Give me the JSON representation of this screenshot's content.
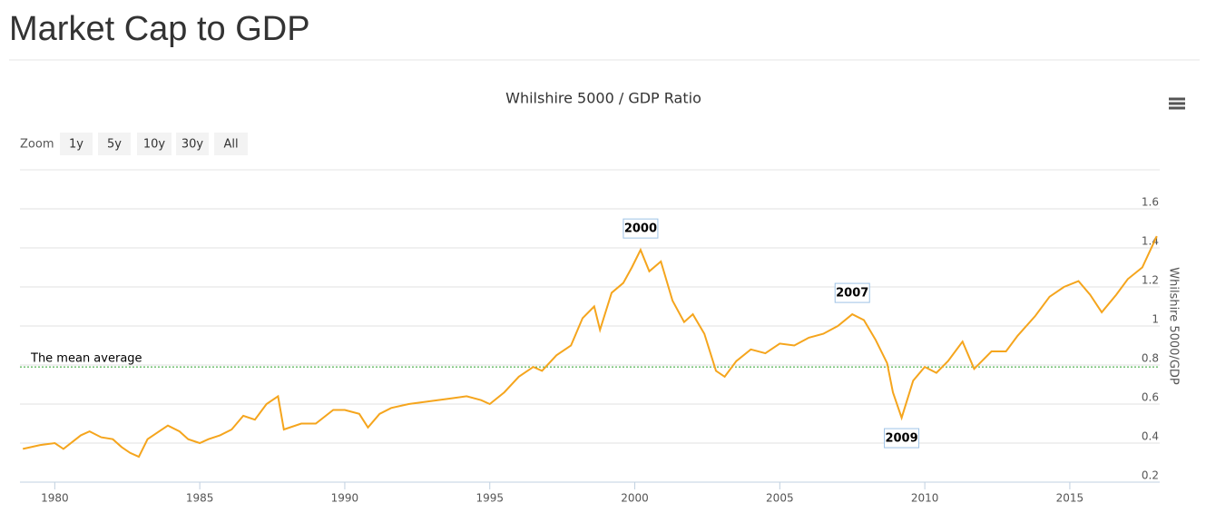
{
  "page_title": "Market Cap to GDP",
  "zoom": {
    "label": "Zoom",
    "buttons": [
      "1y",
      "5y",
      "10y",
      "30y",
      "All"
    ]
  },
  "chart_data": {
    "type": "line",
    "title": "Whilshire 5000 / GDP Ratio",
    "y_axis_label": "Whilshire 5000/GDP",
    "x": [
      1978.9,
      1979.5,
      1980.0,
      1980.3,
      1980.9,
      1981.2,
      1981.6,
      1982.0,
      1982.3,
      1982.6,
      1982.9,
      1983.2,
      1983.6,
      1983.9,
      1984.3,
      1984.6,
      1985.0,
      1985.3,
      1985.7,
      1986.1,
      1986.5,
      1986.9,
      1987.3,
      1987.7,
      1987.9,
      1988.5,
      1989.0,
      1989.6,
      1990.0,
      1990.5,
      1990.8,
      1991.2,
      1991.6,
      1992.2,
      1992.7,
      1993.2,
      1993.7,
      1994.2,
      1994.7,
      1995.0,
      1995.5,
      1996.0,
      1996.5,
      1996.8,
      1997.3,
      1997.8,
      1998.2,
      1998.6,
      1998.8,
      1999.2,
      1999.6,
      1999.9,
      2000.2,
      2000.5,
      2000.9,
      2001.3,
      2001.7,
      2002.0,
      2002.4,
      2002.8,
      2003.1,
      2003.5,
      2004.0,
      2004.5,
      2005.0,
      2005.5,
      2006.0,
      2006.5,
      2007.0,
      2007.5,
      2007.9,
      2008.3,
      2008.7,
      2008.9,
      2009.2,
      2009.6,
      2010.0,
      2010.4,
      2010.8,
      2011.3,
      2011.7,
      2012.3,
      2012.8,
      2013.2,
      2013.8,
      2014.3,
      2014.8,
      2015.3,
      2015.7,
      2016.1,
      2016.6,
      2017.0,
      2017.5,
      2018.0
    ],
    "series": [
      {
        "name": "Whilshire 5000 / GDP",
        "color": "#f5a51d",
        "values": [
          0.37,
          0.39,
          0.4,
          0.37,
          0.44,
          0.46,
          0.43,
          0.42,
          0.38,
          0.35,
          0.33,
          0.42,
          0.46,
          0.49,
          0.46,
          0.42,
          0.4,
          0.42,
          0.44,
          0.47,
          0.54,
          0.52,
          0.6,
          0.64,
          0.47,
          0.5,
          0.5,
          0.57,
          0.57,
          0.55,
          0.48,
          0.55,
          0.58,
          0.6,
          0.61,
          0.62,
          0.63,
          0.64,
          0.62,
          0.6,
          0.66,
          0.74,
          0.79,
          0.77,
          0.85,
          0.9,
          1.04,
          1.1,
          0.98,
          1.17,
          1.22,
          1.3,
          1.39,
          1.28,
          1.33,
          1.13,
          1.02,
          1.06,
          0.96,
          0.77,
          0.74,
          0.82,
          0.88,
          0.86,
          0.91,
          0.9,
          0.94,
          0.96,
          1.0,
          1.06,
          1.03,
          0.93,
          0.81,
          0.66,
          0.53,
          0.72,
          0.79,
          0.76,
          0.82,
          0.92,
          0.78,
          0.87,
          0.87,
          0.95,
          1.05,
          1.15,
          1.2,
          1.23,
          1.16,
          1.07,
          1.16,
          1.24,
          1.3,
          1.46
        ]
      }
    ],
    "mean_line": {
      "label": "The mean average",
      "value": 0.79,
      "color": "#2ca02c"
    },
    "annotations": [
      {
        "text": "2000",
        "x": 2000.2,
        "y": 1.39
      },
      {
        "text": "2007",
        "x": 2007.5,
        "y": 1.06
      },
      {
        "text": "2009",
        "x": 2009.2,
        "y": 0.53
      }
    ],
    "xlim": [
      1978.8,
      2018.1
    ],
    "xticks": [
      1980,
      1985,
      1990,
      1995,
      2000,
      2005,
      2010,
      2015
    ],
    "ylim": [
      0.2,
      1.8
    ],
    "yticks": [
      0.2,
      0.4,
      0.6,
      0.8,
      1,
      1.2,
      1.4,
      1.6
    ],
    "grid": true
  }
}
